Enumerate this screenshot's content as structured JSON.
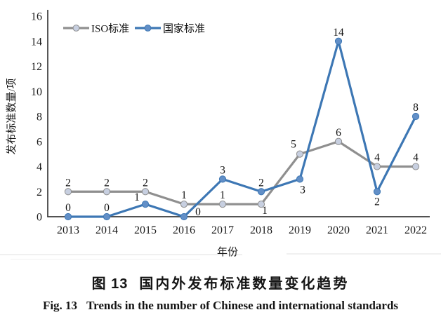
{
  "figure": {
    "caption_zh_label": "图 13",
    "caption_zh_title": "国内外发布标准数量变化趋势",
    "caption_en_label": "Fig. 13",
    "caption_en_title": "Trends in the number of Chinese and international standards"
  },
  "chart_data": {
    "type": "line",
    "title": "",
    "xlabel": "年份",
    "ylabel": "发布标准数量/项",
    "categories": [
      "2013",
      "2014",
      "2015",
      "2016",
      "2017",
      "2018",
      "2019",
      "2020",
      "2021",
      "2022"
    ],
    "ylim": [
      0,
      16
    ],
    "yticks": [
      0,
      2,
      4,
      6,
      8,
      10,
      12,
      14,
      16
    ],
    "grid": false,
    "data_labels": true,
    "legend_position": "top-inside",
    "axis_color": "#3a3a3a",
    "series": [
      {
        "name": "ISO标准",
        "values": [
          2,
          2,
          2,
          1,
          1,
          1,
          5,
          6,
          4,
          4
        ],
        "line_color": "#8F8F8F",
        "marker_color": "#C7CFE0"
      },
      {
        "name": "国家标准",
        "values": [
          0,
          0,
          1,
          0,
          3,
          2,
          3,
          14,
          2,
          8
        ],
        "line_color": "#3D77B4",
        "marker_color": "#628FC7"
      }
    ]
  }
}
